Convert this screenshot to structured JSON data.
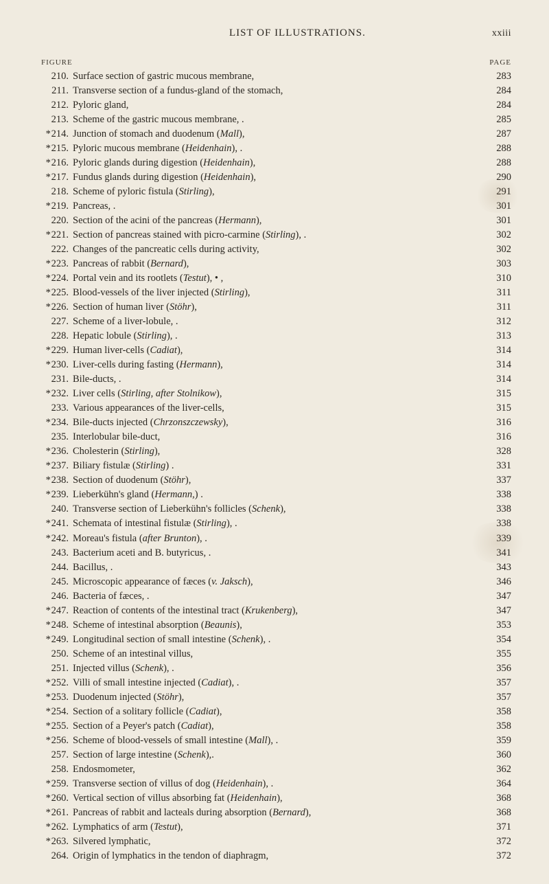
{
  "header": {
    "title": "LIST OF ILLUSTRATIONS.",
    "page_roman": "xxiii",
    "col_left": "FIGURE",
    "col_right": "PAGE"
  },
  "entries": [
    {
      "star": "",
      "num": "210.",
      "title": "Surface section of gastric mucous membrane,",
      "page": "283"
    },
    {
      "star": "",
      "num": "211.",
      "title": "Transverse section of a fundus-gland of the stomach,",
      "page": "284"
    },
    {
      "star": "",
      "num": "212.",
      "title": "Pyloric gland,",
      "page": "284"
    },
    {
      "star": "",
      "num": "213.",
      "title": "Scheme of the gastric mucous membrane, .",
      "page": "285"
    },
    {
      "star": "*",
      "num": "214.",
      "title": "Junction of stomach and duodenum (<i>Mall</i>),",
      "page": "287"
    },
    {
      "star": "*",
      "num": "215.",
      "title": "Pyloric mucous membrane (<i>Heidenhain</i>), .",
      "page": "288"
    },
    {
      "star": "*",
      "num": "216.",
      "title": "Pyloric glands during digestion (<i>Heidenhain</i>),",
      "page": "288"
    },
    {
      "star": "*",
      "num": "217.",
      "title": "Fundus glands during digestion (<i>Heidenhain</i>),",
      "page": "290"
    },
    {
      "star": "",
      "num": "218.",
      "title": "Scheme of pyloric fistula (<i>Stirling</i>),",
      "page": "291"
    },
    {
      "star": "*",
      "num": "219.",
      "title": "Pancreas, .",
      "page": "301"
    },
    {
      "star": "",
      "num": "220.",
      "title": "Section of the acini of the pancreas (<i>Hermann</i>),",
      "page": "301"
    },
    {
      "star": "*",
      "num": "221.",
      "title": "Section of pancreas stained with picro-carmine (<i>Stirling</i>), .",
      "page": "302"
    },
    {
      "star": "",
      "num": "222.",
      "title": "Changes of the pancreatic cells during activity,",
      "page": "302"
    },
    {
      "star": "*",
      "num": "223.",
      "title": "Pancreas of rabbit (<i>Bernard</i>),",
      "page": "303"
    },
    {
      "star": "*",
      "num": "224.",
      "title": "Portal vein and its rootlets (<i>Testut</i>), • ,",
      "page": "310"
    },
    {
      "star": "*",
      "num": "225.",
      "title": "Blood-vessels of the liver injected (<i>Stirling</i>),",
      "page": "311"
    },
    {
      "star": "*",
      "num": "226.",
      "title": "Section of human liver (<i>Stöhr</i>),",
      "page": "311"
    },
    {
      "star": "",
      "num": "227.",
      "title": "Scheme of a liver-lobule, .",
      "page": "312"
    },
    {
      "star": "",
      "num": "228.",
      "title": "Hepatic lobule (<i>Stirling</i>), .",
      "page": "313"
    },
    {
      "star": "*",
      "num": "229.",
      "title": "Human liver-cells (<i>Cadiat</i>),",
      "page": "314"
    },
    {
      "star": "*",
      "num": "230.",
      "title": "Liver-cells during fasting (<i>Hermann</i>),",
      "page": "314"
    },
    {
      "star": "",
      "num": "231.",
      "title": "Bile-ducts, .",
      "page": "314"
    },
    {
      "star": "*",
      "num": "232.",
      "title": "Liver cells (<i>Stirling, after Stolnikow</i>),",
      "page": "315"
    },
    {
      "star": "",
      "num": "233.",
      "title": "Various appearances of the liver-cells,",
      "page": "315"
    },
    {
      "star": "*",
      "num": "234.",
      "title": "Bile-ducts injected (<i>Chrzonszczewsky</i>),",
      "page": "316"
    },
    {
      "star": "",
      "num": "235.",
      "title": "Interlobular bile-duct,",
      "page": "316"
    },
    {
      "star": "*",
      "num": "236.",
      "title": "Cholesterin (<i>Stirling</i>),",
      "page": "328"
    },
    {
      "star": "*",
      "num": "237.",
      "title": "Biliary fistulæ (<i>Stirling</i>) .",
      "page": "331"
    },
    {
      "star": "*",
      "num": "238.",
      "title": "Section of duodenum (<i>Stöhr</i>),",
      "page": "337"
    },
    {
      "star": "*",
      "num": "239.",
      "title": "Lieberkühn's gland (<i>Hermann,</i>)  .",
      "page": "338"
    },
    {
      "star": "",
      "num": "240.",
      "title": "Transverse section of Lieberkühn's follicles (<i>Schenk</i>),",
      "page": "338"
    },
    {
      "star": "*",
      "num": "241.",
      "title": "Schemata of intestinal fistulæ (<i>Stirling</i>), .",
      "page": "338"
    },
    {
      "star": "*",
      "num": "242.",
      "title": "Moreau's fistula (<i>after Brunton</i>), .",
      "page": "339"
    },
    {
      "star": "",
      "num": "243.",
      "title": "Bacterium aceti and B. butyricus, .",
      "page": "341"
    },
    {
      "star": "",
      "num": "244.",
      "title": "Bacillus,  .",
      "page": "343"
    },
    {
      "star": "",
      "num": "245.",
      "title": "Microscopic appearance of fæces (<i>v. Jaksch</i>),",
      "page": "346"
    },
    {
      "star": "",
      "num": "246.",
      "title": "Bacteria of fæces, .",
      "page": "347"
    },
    {
      "star": "*",
      "num": "247.",
      "title": "Reaction of contents of the intestinal tract (<i>Krukenberg</i>),",
      "page": "347"
    },
    {
      "star": "*",
      "num": "248.",
      "title": "Scheme of intestinal absorption (<i>Beaunis</i>),",
      "page": "353"
    },
    {
      "star": "*",
      "num": "249.",
      "title": "Longitudinal section of small intestine (<i>Schenk</i>), .",
      "page": "354"
    },
    {
      "star": "",
      "num": "250.",
      "title": "Scheme of an intestinal villus,",
      "page": "355"
    },
    {
      "star": "",
      "num": "251.",
      "title": "Injected villus (<i>Schenk</i>),  .",
      "page": "356"
    },
    {
      "star": "*",
      "num": "252.",
      "title": "Villi of small intestine injected (<i>Cadiat</i>), .",
      "page": "357"
    },
    {
      "star": "*",
      "num": "253.",
      "title": "Duodenum injected (<i>Stöhr</i>),",
      "page": "357"
    },
    {
      "star": "*",
      "num": "254.",
      "title": "Section of a solitary follicle (<i>Cadiat</i>),",
      "page": "358"
    },
    {
      "star": "*",
      "num": "255.",
      "title": "Section of a Peyer's patch (<i>Cadiat</i>),",
      "page": "358"
    },
    {
      "star": "*",
      "num": "256.",
      "title": "Scheme of blood-vessels of small intestine (<i>Mall</i>), .",
      "page": "359"
    },
    {
      "star": "",
      "num": "257.",
      "title": "Section of large intestine (<i>Schenk</i>),.",
      "page": "360"
    },
    {
      "star": "",
      "num": "258.",
      "title": "Endosmometer,",
      "page": "362"
    },
    {
      "star": "*",
      "num": "259.",
      "title": "Transverse section of villus of dog (<i>Heidenhain</i>), .",
      "page": "364"
    },
    {
      "star": "*",
      "num": "260.",
      "title": "Vertical section of villus absorbing fat (<i>Heidenhain</i>),",
      "page": "368"
    },
    {
      "star": "*",
      "num": "261.",
      "title": "Pancreas of rabbit and lacteals during absorption (<i>Bernard</i>),",
      "page": "368"
    },
    {
      "star": "*",
      "num": "262.",
      "title": "Lymphatics of arm (<i>Testut</i>),",
      "page": "371"
    },
    {
      "star": "*",
      "num": "263.",
      "title": "Silvered lymphatic,",
      "page": "372"
    },
    {
      "star": "",
      "num": "264.",
      "title": "Origin of lymphatics in the tendon of diaphragm,",
      "page": "372"
    }
  ],
  "style": {
    "background": "#f0ebe0",
    "text_color": "#2a2620",
    "font_family": "Times New Roman",
    "body_fontsize": 14.5,
    "header_fontsize": 15,
    "line_height": 1.45
  }
}
